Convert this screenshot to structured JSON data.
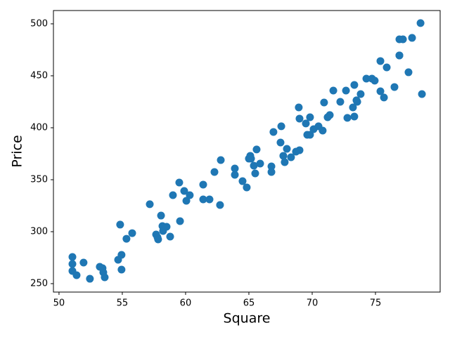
{
  "chart_data": {
    "type": "scatter",
    "x_label": "Square",
    "y_label": "Price",
    "color": "#1f77b4",
    "xlim": [
      49.56,
      80.11
    ],
    "ylim": [
      241.9,
      512.8
    ],
    "xticks": [
      50,
      55,
      60,
      65,
      70,
      75
    ],
    "yticks": [
      250,
      300,
      350,
      400,
      450,
      500
    ],
    "x": [
      51.06,
      51.06,
      51.06,
      51.39,
      51.94,
      52.44,
      53.22,
      53.44,
      53.5,
      53.61,
      54.67,
      54.83,
      54.94,
      54.94,
      55.33,
      55.78,
      57.17,
      57.67,
      57.83,
      57.78,
      58.06,
      58.17,
      58.22,
      58.5,
      58.78,
      59,
      59.5,
      59.56,
      59.89,
      60.06,
      60.33,
      61.39,
      61.39,
      61.89,
      62.28,
      62.72,
      62.78,
      63.89,
      63.89,
      64.5,
      64.83,
      65,
      65.11,
      65.17,
      65.39,
      65.5,
      65.61,
      65.89,
      66.78,
      66.78,
      66.94,
      67.5,
      67.56,
      67.72,
      67.83,
      68,
      68.33,
      68.72,
      68.94,
      69,
      69,
      69.5,
      69.61,
      69.83,
      69.83,
      70.11,
      70.5,
      70.83,
      70.94,
      71.22,
      71.39,
      71.67,
      72.22,
      72.67,
      72.78,
      73.22,
      73.33,
      73.33,
      73.5,
      73.56,
      73.83,
      74.28,
      74.72,
      74.94,
      75.39,
      75.39,
      75.67,
      75.89,
      76.5,
      76.89,
      76.89,
      76.89,
      77.17,
      77.61,
      77.89,
      78.56,
      78.67
    ],
    "y": [
      275.7,
      268.9,
      262.2,
      258.1,
      270.3,
      254.7,
      266.2,
      264.9,
      260.8,
      256.1,
      273,
      306.8,
      277.7,
      263.5,
      293.2,
      298.6,
      326.4,
      297.3,
      292.6,
      294.6,
      315.5,
      305.4,
      300.7,
      304.7,
      295.3,
      335.1,
      347.3,
      310.1,
      339.2,
      329.7,
      335.1,
      345.3,
      331.1,
      331.1,
      357.4,
      325.7,
      368.9,
      360.8,
      354.7,
      348.6,
      342.6,
      370.3,
      373,
      370.3,
      363.5,
      356.1,
      379.1,
      365.5,
      362.8,
      357.4,
      395.9,
      385.8,
      401.4,
      373,
      366.9,
      379.7,
      371.6,
      377,
      419.6,
      378.4,
      408.8,
      404.1,
      393.2,
      410.1,
      393.2,
      398.6,
      401.4,
      397.3,
      424.3,
      410.1,
      412.2,
      435.8,
      425,
      435.8,
      409.5,
      419.6,
      441.2,
      410.8,
      426.4,
      425,
      432.4,
      447.3,
      447.3,
      445.3,
      435.1,
      464.2,
      429.1,
      458.1,
      439.2,
      485.1,
      469.6,
      469.6,
      485.1,
      453.4,
      486.5,
      500.7,
      432.4
    ]
  }
}
